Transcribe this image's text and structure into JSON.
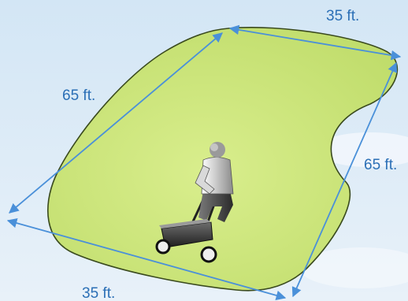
{
  "labels": {
    "top": "35 ft.",
    "left": "65 ft.",
    "right": "65 ft.",
    "bottom": "35 ft."
  },
  "colors": {
    "sky_top": "#d6e8f6",
    "sky_bottom": "#e9f2fa",
    "lawn_fill": "#cfe87e",
    "lawn_edge": "#3a4a1e",
    "dimension_line": "#4a90d9",
    "label_text": "#2b6fb6"
  }
}
